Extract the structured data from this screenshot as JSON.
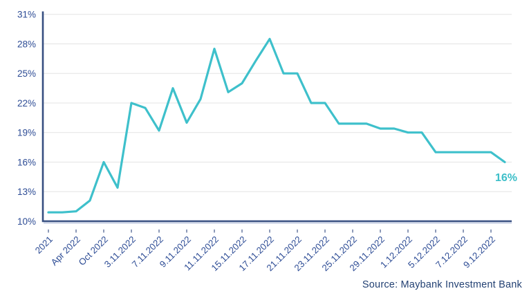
{
  "chart_data": {
    "type": "line",
    "title": "",
    "legend": "none",
    "grid": "horizontal-only",
    "y_unit": "%",
    "ylim": [
      10,
      31
    ],
    "y_ticks": [
      10,
      13,
      16,
      19,
      22,
      25,
      28,
      31
    ],
    "x_tick_labels": [
      "2021",
      "Apr 2022",
      "Oct 2022",
      "3.11.2022",
      "7.11.2022",
      "9.11.2022",
      "11.11.2022",
      "15.11.2022",
      "17.11.2022",
      "21.11.2022",
      "23.11.2022",
      "25.11.2022",
      "29.11.2022",
      "1.12.2022",
      "5.12.2022",
      "7.12.2022",
      "9.12.2022"
    ],
    "points_per_labeled_tick": 2,
    "series": [
      {
        "name": "foreign-shareholding-trend",
        "values": [
          10.9,
          10.9,
          11.0,
          12.1,
          16.0,
          13.4,
          22.0,
          21.5,
          19.2,
          23.5,
          20.0,
          22.4,
          27.5,
          23.1,
          24.0,
          26.3,
          28.5,
          25.0,
          25.0,
          22.0,
          22.0,
          19.9,
          19.9,
          19.9,
          19.4,
          19.4,
          19.0,
          19.0,
          17.0,
          17.0,
          17.0,
          17.0,
          17.0,
          16.0
        ]
      }
    ],
    "end_label": "16%"
  },
  "source": "Source: Maybank Investment Bank",
  "colors": {
    "line": "#3EC0CB",
    "end_label": "#3BBEC8",
    "axis_line": "#364E80",
    "axis_line_glow": "#93A4CC",
    "tick_mark": "#8E9BB9",
    "tick_label": "#2D4C95",
    "gridline": "#E3E3E3",
    "source_text": "#234173"
  }
}
